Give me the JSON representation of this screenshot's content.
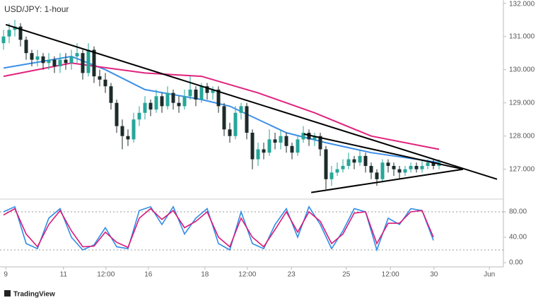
{
  "chart_data": [
    {
      "type": "candlestick",
      "title": "USD/JPY: 1-hour",
      "up_color": "#26a69a",
      "down_color": "#1c2b2a",
      "xlim": [
        0,
        87.5
      ],
      "ylim": [
        126.1,
        132.1
      ],
      "yticks": [
        {
          "value": 132,
          "label": "132.000"
        },
        {
          "value": 131,
          "label": "131.000"
        },
        {
          "value": 130,
          "label": "130.000"
        },
        {
          "value": 129,
          "label": "129.000"
        },
        {
          "value": 128,
          "label": "128.000"
        },
        {
          "value": 127,
          "label": "127.000"
        }
      ],
      "ohlc": [
        [
          130.8,
          131.2,
          130.6,
          131.0
        ],
        [
          131.0,
          131.4,
          130.8,
          131.2
        ],
        [
          131.2,
          131.5,
          131.0,
          131.3
        ],
        [
          131.3,
          131.4,
          130.7,
          130.9
        ],
        [
          130.9,
          131.0,
          130.3,
          130.5
        ],
        [
          130.5,
          130.6,
          130.1,
          130.3
        ],
        [
          130.3,
          130.6,
          130.1,
          130.4
        ],
        [
          130.4,
          130.5,
          130.0,
          130.2
        ],
        [
          130.2,
          130.5,
          130.0,
          130.3
        ],
        [
          130.3,
          130.4,
          129.9,
          130.1
        ],
        [
          130.1,
          130.5,
          129.9,
          130.3
        ],
        [
          130.3,
          130.5,
          130.0,
          130.2
        ],
        [
          130.2,
          130.6,
          130.0,
          130.4
        ],
        [
          130.4,
          130.8,
          130.2,
          130.5
        ],
        [
          130.5,
          130.6,
          129.7,
          129.9
        ],
        [
          129.9,
          130.8,
          129.8,
          130.6
        ],
        [
          130.6,
          130.7,
          129.6,
          129.8
        ],
        [
          129.8,
          130.0,
          129.5,
          129.7
        ],
        [
          129.7,
          129.9,
          129.3,
          129.5
        ],
        [
          129.5,
          129.6,
          128.8,
          129.0
        ],
        [
          129.0,
          129.1,
          128.1,
          128.3
        ],
        [
          128.3,
          128.5,
          127.6,
          128.0
        ],
        [
          128.0,
          128.2,
          127.7,
          127.9
        ],
        [
          127.9,
          128.7,
          127.8,
          128.5
        ],
        [
          128.5,
          128.9,
          128.3,
          128.7
        ],
        [
          128.7,
          129.2,
          128.5,
          129.0
        ],
        [
          129.0,
          129.1,
          128.6,
          128.8
        ],
        [
          128.8,
          129.4,
          128.7,
          129.2
        ],
        [
          129.2,
          129.3,
          128.7,
          128.9
        ],
        [
          128.9,
          129.5,
          128.8,
          129.3
        ],
        [
          129.3,
          129.4,
          128.8,
          129.0
        ],
        [
          129.0,
          129.2,
          128.7,
          128.9
        ],
        [
          128.9,
          129.4,
          128.8,
          129.2
        ],
        [
          129.2,
          129.8,
          129.1,
          129.4
        ],
        [
          129.4,
          129.5,
          128.9,
          129.1
        ],
        [
          129.1,
          129.6,
          129.0,
          129.5
        ],
        [
          129.5,
          129.6,
          129.1,
          129.3
        ],
        [
          129.3,
          129.5,
          129.1,
          129.4
        ],
        [
          129.4,
          129.5,
          128.7,
          128.9
        ],
        [
          128.9,
          129.0,
          128.0,
          128.2
        ],
        [
          128.2,
          128.4,
          127.8,
          128.0
        ],
        [
          128.0,
          128.9,
          127.9,
          128.7
        ],
        [
          128.7,
          129.0,
          128.5,
          128.9
        ],
        [
          128.9,
          129.0,
          127.9,
          128.1
        ],
        [
          128.1,
          128.2,
          127.0,
          127.3
        ],
        [
          127.3,
          127.8,
          127.1,
          127.6
        ],
        [
          127.6,
          127.8,
          127.3,
          127.5
        ],
        [
          127.5,
          128.2,
          127.4,
          127.9
        ],
        [
          127.9,
          128.1,
          127.6,
          127.8
        ],
        [
          127.8,
          128.2,
          127.6,
          128.0
        ],
        [
          128.0,
          128.1,
          127.5,
          127.7
        ],
        [
          127.7,
          127.8,
          127.3,
          127.5
        ],
        [
          127.5,
          128.0,
          127.4,
          127.9
        ],
        [
          127.9,
          128.3,
          127.8,
          128.1
        ],
        [
          128.1,
          128.2,
          127.7,
          127.9
        ],
        [
          127.9,
          128.1,
          127.7,
          128.0
        ],
        [
          128.0,
          128.1,
          127.4,
          127.6
        ],
        [
          127.6,
          127.7,
          126.4,
          126.7
        ],
        [
          126.7,
          127.1,
          126.5,
          126.9
        ],
        [
          126.9,
          127.2,
          126.8,
          127.0
        ],
        [
          127.0,
          127.3,
          126.9,
          127.1
        ],
        [
          127.1,
          127.5,
          127.0,
          127.3
        ],
        [
          127.3,
          127.4,
          127.0,
          127.2
        ],
        [
          127.2,
          127.6,
          127.1,
          127.4
        ],
        [
          127.4,
          127.5,
          126.9,
          127.1
        ],
        [
          127.1,
          127.2,
          126.7,
          126.9
        ],
        [
          126.9,
          127.0,
          126.5,
          126.7
        ],
        [
          126.7,
          127.3,
          126.6,
          127.2
        ],
        [
          127.2,
          127.3,
          126.9,
          127.1
        ],
        [
          127.1,
          127.2,
          126.8,
          127.0
        ],
        [
          127.0,
          127.1,
          126.7,
          126.9
        ],
        [
          126.9,
          127.1,
          126.8,
          127.0
        ],
        [
          127.0,
          127.2,
          126.9,
          127.1
        ],
        [
          127.1,
          127.2,
          126.9,
          127.0
        ],
        [
          127.0,
          127.3,
          126.9,
          127.1
        ],
        [
          127.1,
          127.3,
          127.0,
          127.2
        ],
        [
          127.2,
          127.3,
          127.0,
          127.1
        ],
        [
          127.1,
          127.3,
          127.0,
          127.2
        ]
      ],
      "series": [
        {
          "color": "#3d8fe8",
          "x": [
            0,
            12,
            18,
            25,
            35,
            40,
            50,
            57,
            65,
            77
          ],
          "values": [
            130.05,
            130.4,
            130.0,
            129.4,
            129.1,
            128.9,
            128.1,
            127.8,
            127.5,
            127.2
          ]
        },
        {
          "color": "#e0237f",
          "x": [
            0,
            12,
            25,
            35,
            45,
            55,
            65,
            77
          ],
          "values": [
            129.8,
            130.2,
            129.9,
            129.8,
            129.3,
            128.7,
            128.0,
            127.6
          ]
        }
      ],
      "trendlines": [
        {
          "x": [
            0.4,
            87.25
          ],
          "y": [
            131.36,
            126.7
          ]
        },
        {
          "x": [
            53.1,
            81.25
          ],
          "y": [
            128.06,
            127.0
          ]
        },
        {
          "x": [
            54.4,
            81.25
          ],
          "y": [
            126.3,
            127.0
          ]
        }
      ]
    },
    {
      "type": "line",
      "xlim": [
        0,
        87.5
      ],
      "ylim": [
        0,
        100
      ],
      "yticks": [
        {
          "value": 80,
          "label": "80.00"
        },
        {
          "value": 40,
          "label": "40.00"
        },
        {
          "value": 0,
          "label": "0.00"
        }
      ],
      "levels": [
        80,
        20
      ],
      "xticks": [
        {
          "value": 0.4,
          "label": "9"
        },
        {
          "value": 10.6,
          "label": "11"
        },
        {
          "value": 18.1,
          "label": "12:00"
        },
        {
          "value": 25.6,
          "label": "16"
        },
        {
          "value": 35.6,
          "label": "18"
        },
        {
          "value": 43.1,
          "label": "12:00"
        },
        {
          "value": 50.9,
          "label": "23"
        },
        {
          "value": 60.6,
          "label": "25"
        },
        {
          "value": 68.4,
          "label": "12:00"
        },
        {
          "value": 76.1,
          "label": "30"
        },
        {
          "value": 85.9,
          "label": "Jun"
        }
      ],
      "x": [
        0,
        2,
        4,
        6,
        8,
        10,
        12,
        14,
        16,
        18,
        20,
        22,
        24,
        26,
        28,
        30,
        32,
        34,
        36,
        38,
        40,
        42,
        44,
        46,
        48,
        50,
        52,
        54,
        56,
        58,
        60,
        62,
        64,
        66,
        68,
        70,
        72,
        74,
        76
      ],
      "series": [
        {
          "color": "#2f8de4",
          "values": [
            80,
            88,
            30,
            22,
            70,
            85,
            40,
            20,
            28,
            55,
            25,
            22,
            82,
            88,
            60,
            88,
            45,
            70,
            85,
            30,
            20,
            80,
            30,
            22,
            60,
            85,
            40,
            88,
            60,
            22,
            50,
            85,
            80,
            20,
            70,
            60,
            85,
            82,
            35
          ]
        },
        {
          "color": "#d81b7a",
          "values": [
            75,
            85,
            45,
            25,
            60,
            82,
            50,
            25,
            26,
            48,
            32,
            24,
            70,
            85,
            68,
            82,
            55,
            65,
            80,
            40,
            25,
            70,
            40,
            25,
            52,
            80,
            48,
            80,
            65,
            30,
            45,
            78,
            80,
            30,
            62,
            62,
            80,
            82,
            40
          ]
        }
      ]
    }
  ],
  "branding": "TradingView"
}
